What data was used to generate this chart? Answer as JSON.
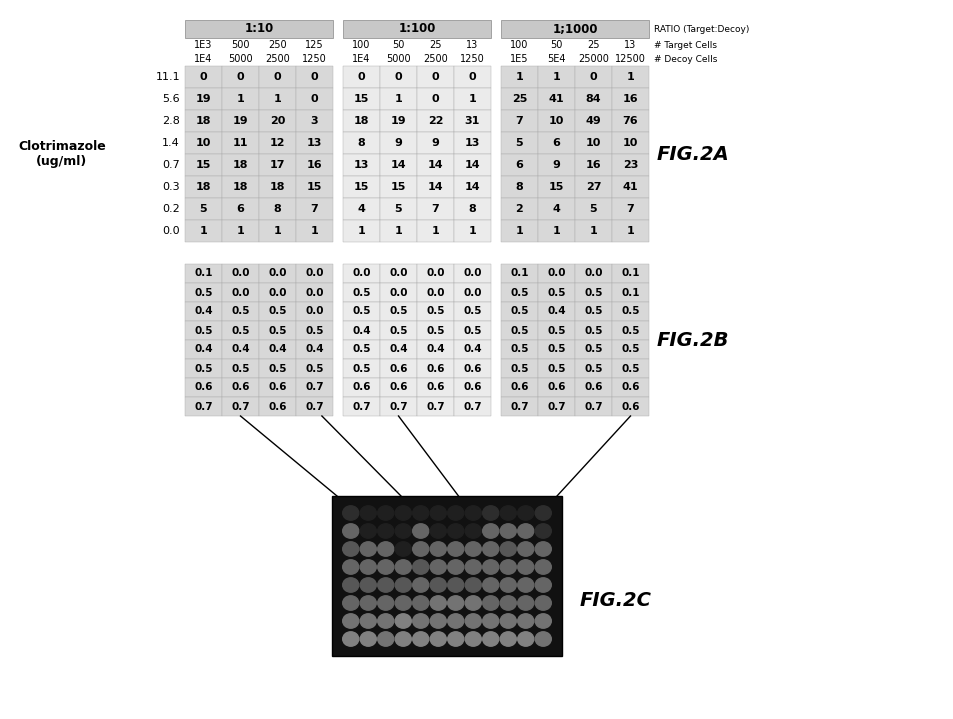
{
  "fig2a_rows": [
    {
      "label": "11.1",
      "vals": [
        0,
        0,
        0,
        0,
        0,
        0,
        0,
        0,
        1,
        1,
        0,
        1
      ]
    },
    {
      "label": "5.6",
      "vals": [
        19,
        1,
        1,
        0,
        15,
        1,
        0,
        1,
        25,
        41,
        84,
        16
      ]
    },
    {
      "label": "2.8",
      "vals": [
        18,
        19,
        20,
        3,
        18,
        19,
        22,
        31,
        7,
        10,
        49,
        76
      ]
    },
    {
      "label": "1.4",
      "vals": [
        10,
        11,
        12,
        13,
        8,
        9,
        9,
        13,
        5,
        6,
        10,
        10
      ]
    },
    {
      "label": "0.7",
      "vals": [
        15,
        18,
        17,
        16,
        13,
        14,
        14,
        14,
        6,
        9,
        16,
        23
      ]
    },
    {
      "label": "0.3",
      "vals": [
        18,
        18,
        18,
        15,
        15,
        15,
        14,
        14,
        8,
        15,
        27,
        41
      ]
    },
    {
      "label": "0.2",
      "vals": [
        5,
        6,
        8,
        7,
        4,
        5,
        7,
        8,
        2,
        4,
        5,
        7
      ]
    },
    {
      "label": "0.0",
      "vals": [
        1,
        1,
        1,
        1,
        1,
        1,
        1,
        1,
        1,
        1,
        1,
        1
      ]
    }
  ],
  "fig2b_rows": [
    [
      0.1,
      0.0,
      0.0,
      0.0,
      0.0,
      0.0,
      0.0,
      0.0,
      0.1,
      0.0,
      0.0,
      0.1
    ],
    [
      0.5,
      0.0,
      0.0,
      0.0,
      0.5,
      0.0,
      0.0,
      0.0,
      0.5,
      0.5,
      0.5,
      0.1
    ],
    [
      0.4,
      0.5,
      0.5,
      0.0,
      0.5,
      0.5,
      0.5,
      0.5,
      0.5,
      0.4,
      0.5,
      0.5
    ],
    [
      0.5,
      0.5,
      0.5,
      0.5,
      0.4,
      0.5,
      0.5,
      0.5,
      0.5,
      0.5,
      0.5,
      0.5
    ],
    [
      0.4,
      0.4,
      0.4,
      0.4,
      0.5,
      0.4,
      0.4,
      0.4,
      0.5,
      0.5,
      0.5,
      0.5
    ],
    [
      0.5,
      0.5,
      0.5,
      0.5,
      0.5,
      0.6,
      0.6,
      0.6,
      0.5,
      0.5,
      0.5,
      0.5
    ],
    [
      0.6,
      0.6,
      0.6,
      0.7,
      0.6,
      0.6,
      0.6,
      0.6,
      0.6,
      0.6,
      0.6,
      0.6
    ],
    [
      0.7,
      0.7,
      0.6,
      0.7,
      0.7,
      0.7,
      0.7,
      0.7,
      0.7,
      0.7,
      0.7,
      0.6
    ]
  ],
  "col_headers_row1": [
    "1E3",
    "500",
    "250",
    "125",
    "100",
    "50",
    "25",
    "13",
    "100",
    "50",
    "25",
    "13"
  ],
  "col_headers_row2": [
    "1E4",
    "5000",
    "2500",
    "1250",
    "1E4",
    "5000",
    "2500",
    "1250",
    "1E5",
    "5E4",
    "25000",
    "12500"
  ],
  "ratio_headers": [
    "1:10",
    "1:100",
    "1;1000"
  ],
  "right_labels": [
    "RATIO (Target:Decoy)",
    "# Target Cells",
    "# Decoy Cells"
  ],
  "clotrimazole_label": "Clotrimazole\n(ug/ml)",
  "fig2a_label": "FIG.2A",
  "fig2b_label": "FIG.2B",
  "fig2c_label": "FIG.2C",
  "bg_color": "#ffffff",
  "header_bg": "#c8c8c8",
  "cell_bg_dark": "#d8d8d8",
  "cell_bg_light": "#ebebeb"
}
